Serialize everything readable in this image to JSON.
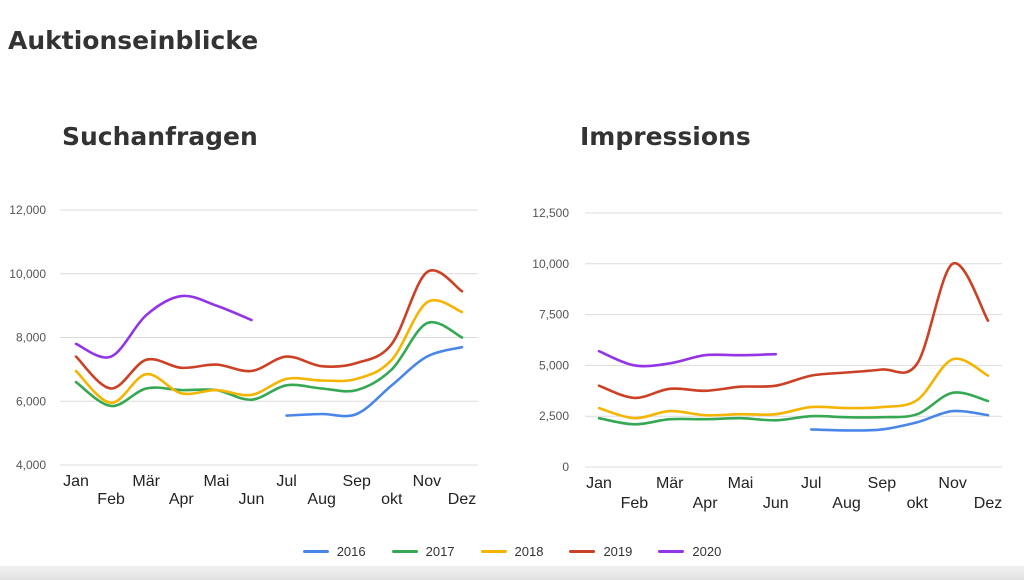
{
  "page": {
    "title": "Auktionseinblicke"
  },
  "legend": [
    {
      "name": "2016",
      "color": "#4a86e8"
    },
    {
      "name": "2017",
      "color": "#34a853"
    },
    {
      "name": "2018",
      "color": "#f4b400"
    },
    {
      "name": "2019",
      "color": "#cc4125"
    },
    {
      "name": "2020",
      "color": "#9334e6"
    }
  ],
  "chart_data": [
    {
      "type": "line",
      "title": "Suchanfragen",
      "xlabel": "",
      "ylabel": "",
      "categories": [
        "Jan",
        "Feb",
        "Mär",
        "Apr",
        "Mai",
        "Jun",
        "Jul",
        "Aug",
        "Sep",
        "okt",
        "Nov",
        "Dez"
      ],
      "yticks": [
        "4,000",
        "6,000",
        "8,000",
        "10,000",
        "12,000"
      ],
      "ylim": [
        4000,
        12000
      ],
      "grid": true,
      "legend_position": "bottom",
      "series": [
        {
          "name": "2016",
          "color": "#4a86e8",
          "values": [
            null,
            null,
            null,
            null,
            null,
            null,
            5550,
            5600,
            5600,
            6500,
            7400,
            7700
          ]
        },
        {
          "name": "2017",
          "color": "#34a853",
          "values": [
            6600,
            5850,
            6400,
            6350,
            6350,
            6050,
            6500,
            6400,
            6350,
            7000,
            8450,
            8000
          ]
        },
        {
          "name": "2018",
          "color": "#f4b400",
          "values": [
            6950,
            5950,
            6850,
            6250,
            6350,
            6200,
            6700,
            6650,
            6700,
            7300,
            9100,
            8800
          ]
        },
        {
          "name": "2019",
          "color": "#cc4125",
          "values": [
            7400,
            6400,
            7300,
            7050,
            7150,
            6950,
            7400,
            7100,
            7200,
            7800,
            10050,
            9450
          ]
        },
        {
          "name": "2020",
          "color": "#9334e6",
          "values": [
            7800,
            7400,
            8700,
            9300,
            9000,
            8550,
            null,
            null,
            null,
            null,
            null,
            null
          ]
        }
      ]
    },
    {
      "type": "line",
      "title": "Impressions",
      "xlabel": "",
      "ylabel": "",
      "categories": [
        "Jan",
        "Feb",
        "Mär",
        "Apr",
        "Mai",
        "Jun",
        "Jul",
        "Aug",
        "Sep",
        "okt",
        "Nov",
        "Dez"
      ],
      "yticks": [
        "0",
        "2,500",
        "5,000",
        "7,500",
        "10,000",
        "12,500"
      ],
      "ylim": [
        0,
        12500
      ],
      "grid": true,
      "legend_position": "bottom",
      "series": [
        {
          "name": "2016",
          "color": "#4a86e8",
          "values": [
            null,
            null,
            null,
            null,
            null,
            null,
            1850,
            1800,
            1850,
            2200,
            2750,
            2550
          ]
        },
        {
          "name": "2017",
          "color": "#34a853",
          "values": [
            2400,
            2100,
            2350,
            2350,
            2400,
            2300,
            2500,
            2450,
            2450,
            2600,
            3650,
            3250
          ]
        },
        {
          "name": "2018",
          "color": "#f4b400",
          "values": [
            2900,
            2400,
            2750,
            2550,
            2600,
            2600,
            2950,
            2900,
            2950,
            3300,
            5300,
            4500
          ]
        },
        {
          "name": "2019",
          "color": "#cc4125",
          "values": [
            4000,
            3400,
            3850,
            3750,
            3950,
            4000,
            4500,
            4650,
            4800,
            5100,
            10000,
            7200
          ]
        },
        {
          "name": "2020",
          "color": "#9334e6",
          "values": [
            5700,
            5000,
            5100,
            5500,
            5500,
            5550,
            null,
            null,
            null,
            null,
            null,
            null
          ]
        }
      ]
    }
  ]
}
